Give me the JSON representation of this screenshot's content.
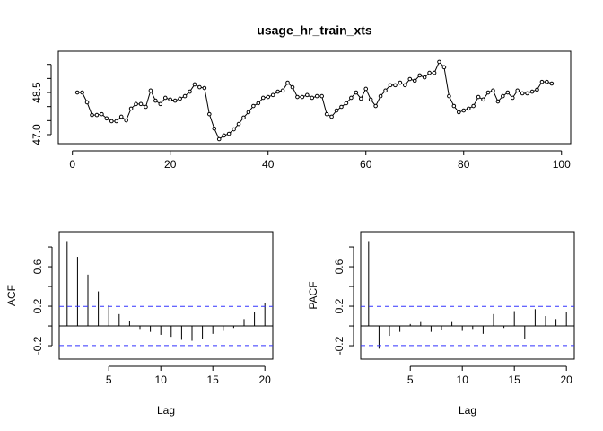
{
  "chart_data": [
    {
      "type": "line",
      "title": "usage_hr_train_xts",
      "x": [
        1,
        2,
        3,
        4,
        5,
        6,
        7,
        8,
        9,
        10,
        11,
        12,
        13,
        14,
        15,
        16,
        17,
        18,
        19,
        20,
        21,
        22,
        23,
        24,
        25,
        26,
        27,
        28,
        29,
        30,
        31,
        32,
        33,
        34,
        35,
        36,
        37,
        38,
        39,
        40,
        41,
        42,
        43,
        44,
        45,
        46,
        47,
        48,
        49,
        50,
        51,
        52,
        53,
        54,
        55,
        56,
        57,
        58,
        59,
        60,
        61,
        62,
        63,
        64,
        65,
        66,
        67,
        68,
        69,
        70,
        71,
        72,
        73,
        74,
        75,
        76,
        77,
        78,
        79,
        80,
        81,
        82,
        83,
        84,
        85,
        86,
        87,
        88,
        89,
        90,
        91,
        92,
        93,
        94,
        95,
        96,
        97,
        98
      ],
      "values": [
        48.5,
        48.5,
        48.15,
        47.7,
        47.7,
        47.73,
        47.58,
        47.48,
        47.48,
        47.64,
        47.51,
        47.93,
        48.09,
        48.09,
        47.99,
        48.57,
        48.21,
        48.09,
        48.31,
        48.25,
        48.21,
        48.28,
        48.37,
        48.53,
        48.79,
        48.69,
        48.66,
        47.73,
        47.22,
        46.84,
        46.97,
        47.03,
        47.19,
        47.38,
        47.61,
        47.8,
        48.02,
        48.12,
        48.31,
        48.34,
        48.41,
        48.53,
        48.57,
        48.85,
        48.69,
        48.34,
        48.34,
        48.41,
        48.31,
        48.37,
        48.37,
        47.73,
        47.64,
        47.86,
        47.99,
        48.12,
        48.31,
        48.5,
        48.28,
        48.63,
        48.25,
        48.02,
        48.37,
        48.57,
        48.76,
        48.76,
        48.85,
        48.76,
        48.98,
        48.92,
        49.11,
        49.04,
        49.2,
        49.2,
        49.59,
        49.4,
        48.37,
        48.02,
        47.8,
        47.86,
        47.93,
        48.02,
        48.34,
        48.25,
        48.5,
        48.57,
        48.18,
        48.37,
        48.5,
        48.31,
        48.57,
        48.47,
        48.47,
        48.53,
        48.6,
        48.88,
        48.88,
        48.82
      ],
      "color": "#000000",
      "xlim": [
        -2.88,
        101.88
      ],
      "ylim": [
        46.68,
        49.97
      ],
      "xticks": [
        0,
        20,
        40,
        60,
        80,
        100
      ],
      "yticks": [
        {
          "value": 47,
          "label": "47.0"
        },
        {
          "value": 47.5,
          "label": null
        },
        {
          "value": 48,
          "label": null
        },
        {
          "value": 48.5,
          "label": "48.5"
        },
        {
          "value": 49,
          "label": null
        },
        {
          "value": 49.5,
          "label": null
        }
      ]
    },
    {
      "type": "bar",
      "xlabel": "Lag",
      "ylabel": "ACF",
      "x": [
        1,
        2,
        3,
        4,
        5,
        6,
        7,
        8,
        9,
        10,
        11,
        12,
        13,
        14,
        15,
        16,
        17,
        18,
        19,
        20
      ],
      "values": [
        0.86,
        0.7,
        0.52,
        0.35,
        0.21,
        0.12,
        0.05,
        -0.03,
        -0.06,
        -0.09,
        -0.11,
        -0.14,
        -0.15,
        -0.13,
        -0.08,
        -0.05,
        -0.02,
        0.07,
        0.14,
        0.23
      ],
      "color": "#000000",
      "ci": 0.198,
      "ci_color": "#3333ff",
      "xlim": [
        0.24,
        20.76
      ],
      "ylim": [
        -0.336,
        0.955
      ],
      "xticks": [
        5,
        10,
        15,
        20
      ],
      "yticks": [
        -0.2,
        {
          "value": 0,
          "label": null
        },
        0.2,
        {
          "value": 0.4,
          "label": null
        },
        0.6,
        {
          "value": 0.8,
          "label": null
        }
      ]
    },
    {
      "type": "bar",
      "xlabel": "Lag",
      "ylabel": "PACF",
      "x": [
        1,
        2,
        3,
        4,
        5,
        6,
        7,
        8,
        9,
        10,
        11,
        12,
        13,
        14,
        15,
        16,
        17,
        18,
        19,
        20
      ],
      "values": [
        0.86,
        -0.23,
        -0.1,
        -0.06,
        0.02,
        0.04,
        -0.06,
        -0.04,
        0.04,
        -0.05,
        -0.03,
        -0.08,
        0.12,
        -0.02,
        0.15,
        -0.13,
        0.17,
        0.1,
        0.07,
        0.14
      ],
      "color": "#000000",
      "ci": 0.198,
      "ci_color": "#3333ff",
      "xlim": [
        0.24,
        20.76
      ],
      "ylim": [
        -0.336,
        0.955
      ],
      "xticks": [
        5,
        10,
        15,
        20
      ],
      "yticks": [
        -0.2,
        {
          "value": 0,
          "label": null
        },
        0.2,
        {
          "value": 0.4,
          "label": null
        },
        0.6,
        {
          "value": 0.8,
          "label": null
        }
      ]
    }
  ]
}
